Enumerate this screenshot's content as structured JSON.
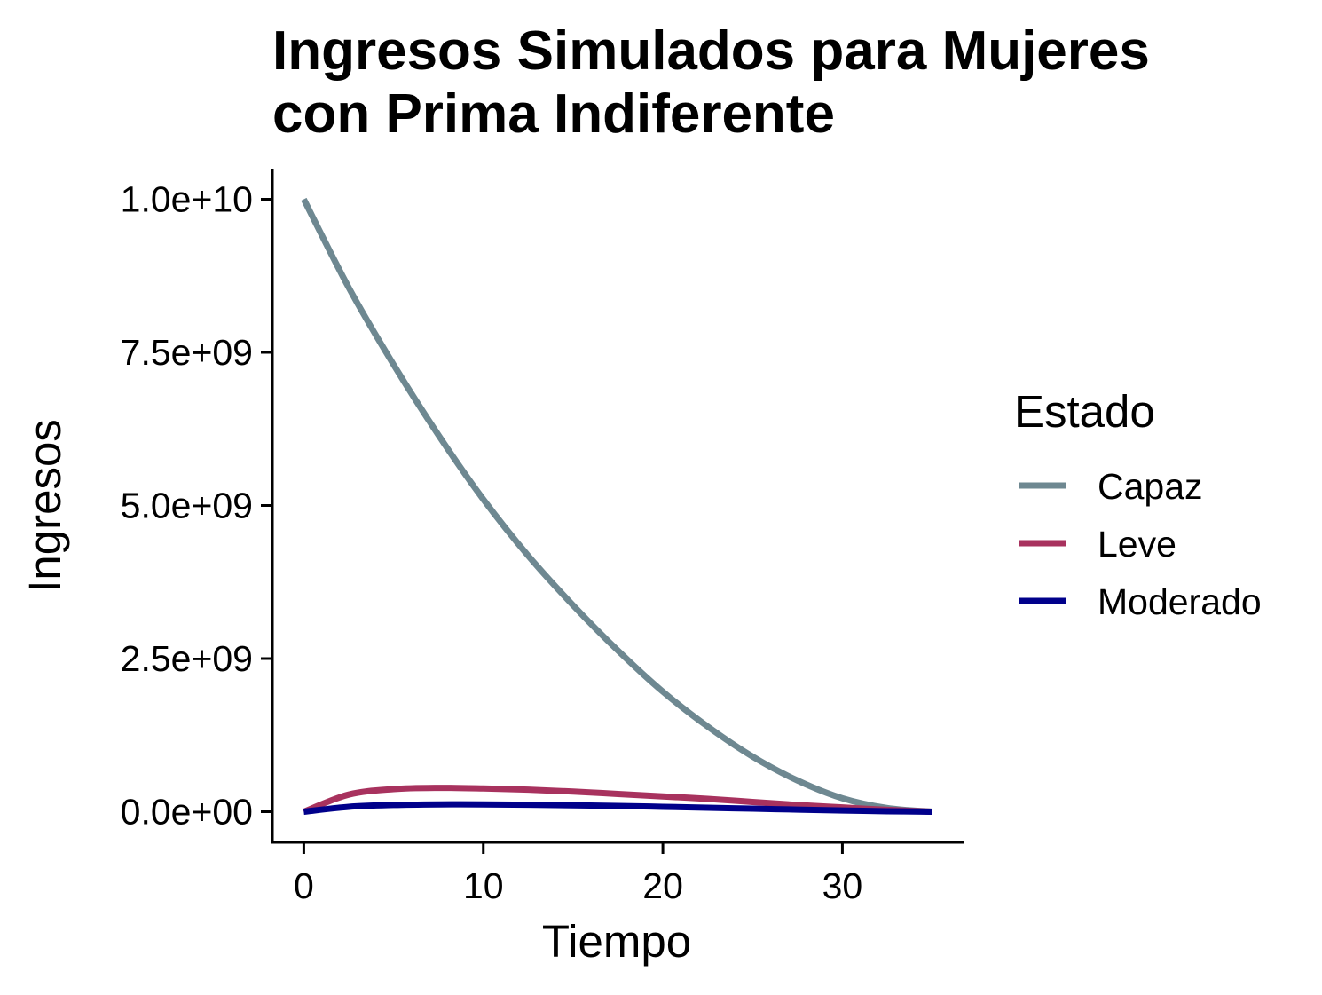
{
  "chart_data": {
    "type": "line",
    "title_lines": [
      "Ingresos Simulados para Mujeres",
      "con Prima Indiferente"
    ],
    "xlabel": "Tiempo",
    "ylabel": "Ingresos",
    "xlim": [
      -1.75,
      36.75
    ],
    "ylim": [
      -500000000,
      10500000000
    ],
    "x_ticks": [
      {
        "value": 0,
        "label": "0"
      },
      {
        "value": 10,
        "label": "10"
      },
      {
        "value": 20,
        "label": "20"
      },
      {
        "value": 30,
        "label": "30"
      }
    ],
    "y_ticks": [
      {
        "value": 0,
        "label": "0.0e+00"
      },
      {
        "value": 2500000000,
        "label": "2.5e+09"
      },
      {
        "value": 5000000000,
        "label": "5.0e+09"
      },
      {
        "value": 7500000000,
        "label": "7.5e+09"
      },
      {
        "value": 10000000000,
        "label": "1.0e+10"
      }
    ],
    "grid": false,
    "legend": {
      "title": "Estado",
      "position": "right"
    },
    "series": [
      {
        "name": "Capaz",
        "color": "#6E8891",
        "x": [
          0,
          2.5,
          5,
          7.5,
          10,
          12.5,
          15,
          17.5,
          20,
          22.5,
          25,
          27.5,
          30,
          32.5,
          35
        ],
        "y": [
          10000000000,
          8560000000,
          7300000000,
          6150000000,
          5100000000,
          4180000000,
          3370000000,
          2630000000,
          1960000000,
          1390000000,
          900000000,
          510000000,
          220000000,
          60000000,
          0
        ]
      },
      {
        "name": "Leve",
        "color": "#A8325E",
        "x": [
          0,
          2.5,
          5,
          7.5,
          10,
          12.5,
          15,
          17.5,
          20,
          22.5,
          25,
          27.5,
          30,
          32.5,
          35
        ],
        "y": [
          0,
          280000000,
          370000000,
          390000000,
          380000000,
          360000000,
          330000000,
          290000000,
          250000000,
          210000000,
          160000000,
          110000000,
          70000000,
          30000000,
          0
        ]
      },
      {
        "name": "Moderado",
        "color": "#00008B",
        "x": [
          0,
          2.5,
          5,
          7.5,
          10,
          12.5,
          15,
          17.5,
          20,
          22.5,
          25,
          27.5,
          30,
          32.5,
          35
        ],
        "y": [
          0,
          80000000,
          110000000,
          120000000,
          120000000,
          115000000,
          105000000,
          95000000,
          80000000,
          65000000,
          50000000,
          35000000,
          20000000,
          8000000,
          0
        ]
      }
    ]
  }
}
